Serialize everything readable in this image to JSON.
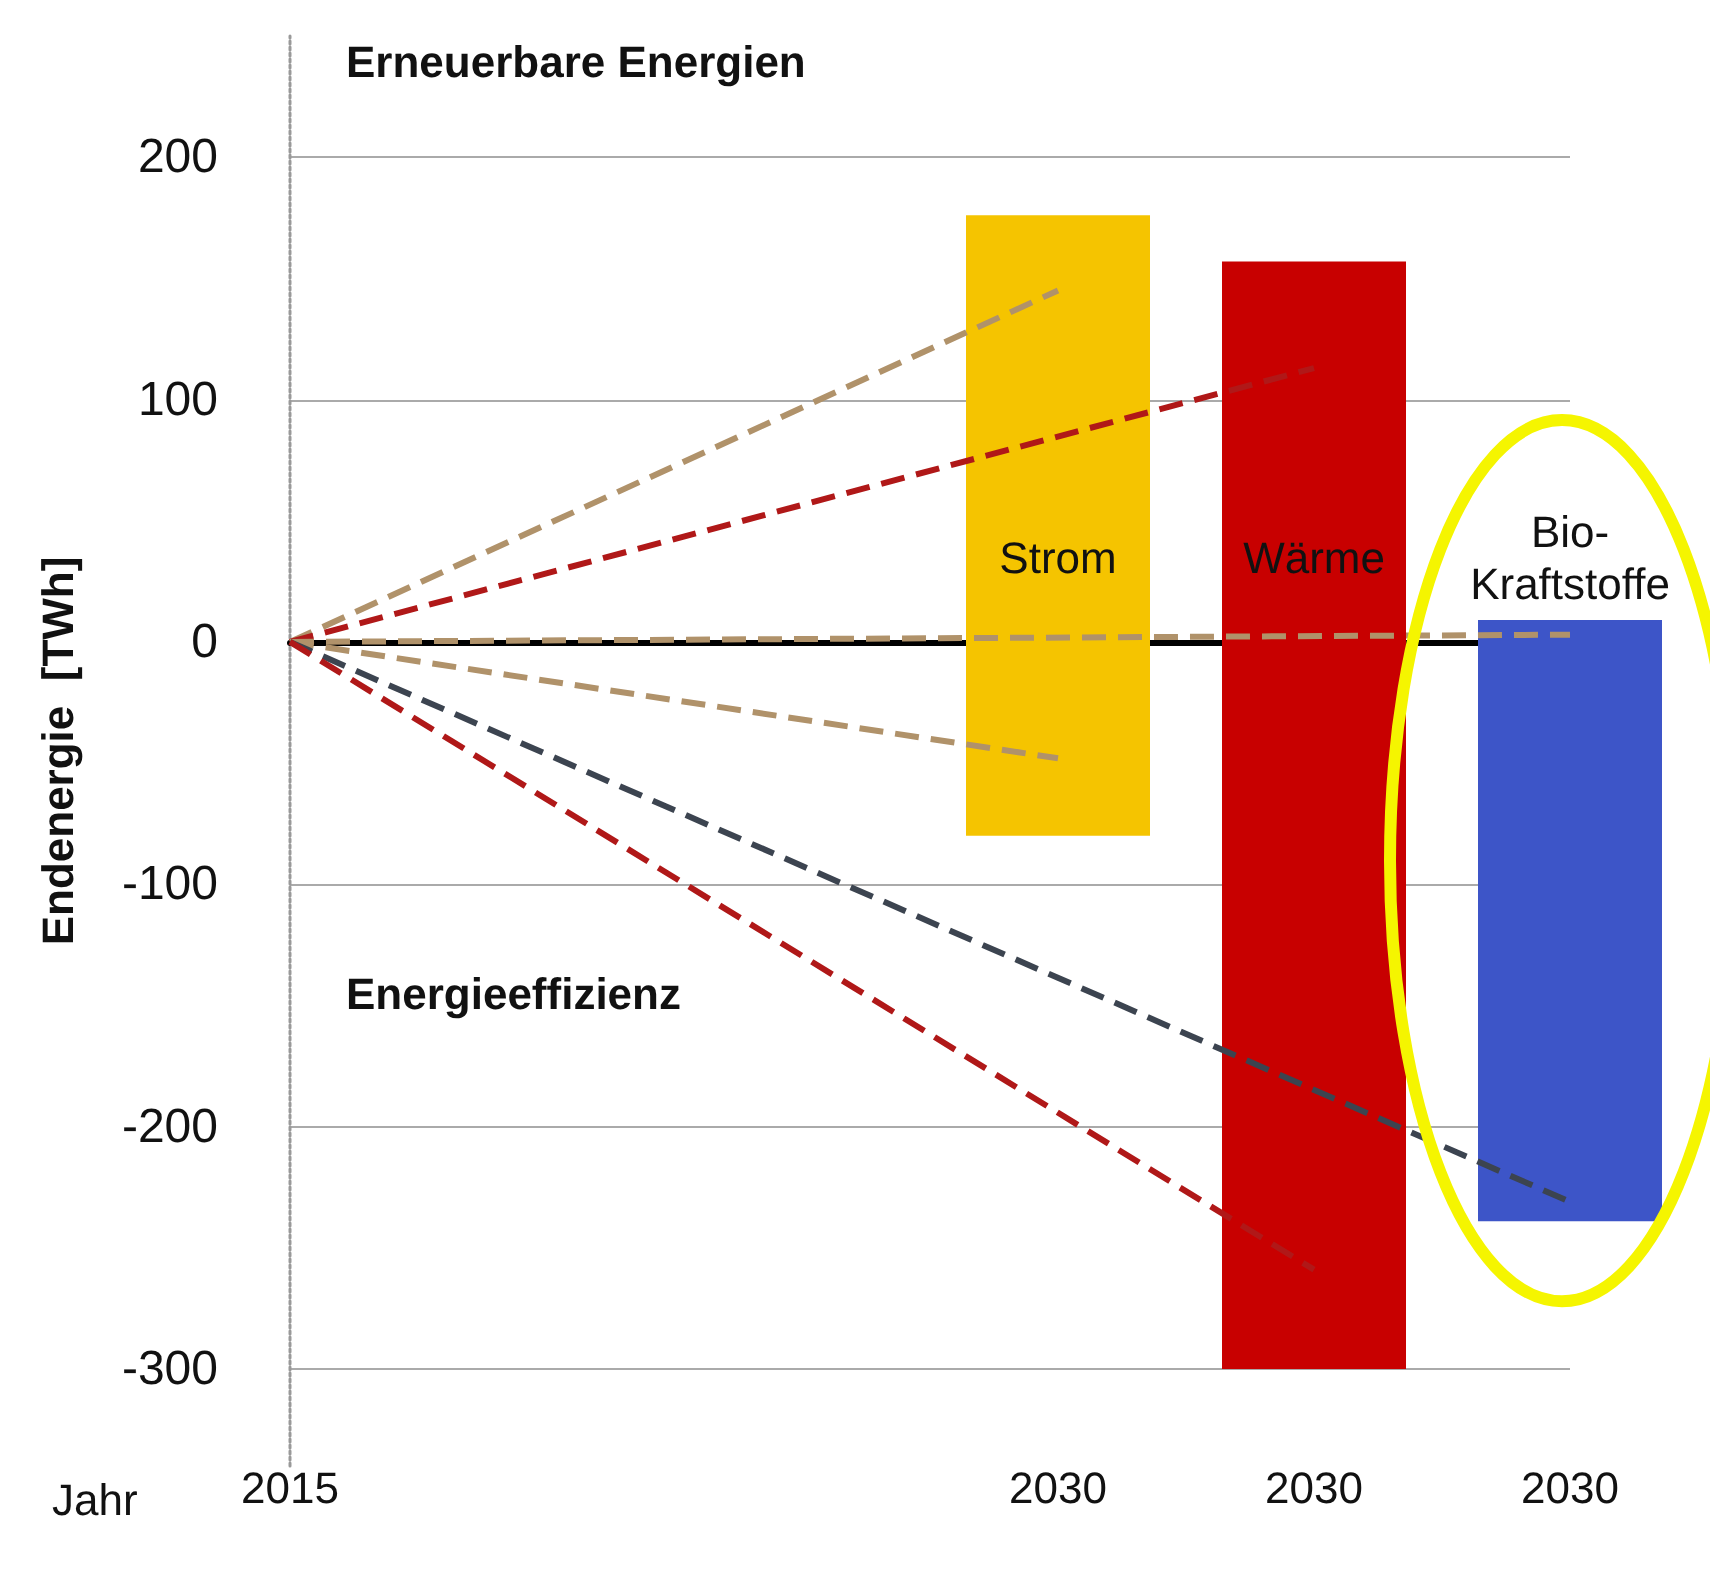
{
  "chart_data": {
    "type": "bar",
    "ylabel": "Endenergie  [TWh]",
    "xlabel": "Jahr",
    "categories": [
      "2015",
      null,
      null,
      "2030",
      "2030",
      "2030"
    ],
    "series": [
      {
        "name": "Strom",
        "color": "#f5c400",
        "values": [
          null,
          null,
          null,
          256,
          null,
          null
        ],
        "base": [
          null,
          null,
          null,
          -80,
          null,
          null
        ]
      },
      {
        "name": "Wärme",
        "color": "#c80000",
        "values": [
          null,
          null,
          null,
          null,
          457,
          null
        ],
        "base": [
          null,
          null,
          null,
          null,
          -300,
          null
        ]
      },
      {
        "name": "Bio-\nKraftstoffe",
        "color": "#3d55c8",
        "values": [
          null,
          null,
          null,
          null,
          null,
          248
        ],
        "base": [
          null,
          null,
          null,
          null,
          null,
          -239
        ]
      },
      {
        "type": "line",
        "color": "#b0926a",
        "values": [
          0,
          null,
          null,
          145,
          null,
          null
        ]
      },
      {
        "type": "line",
        "color": "#b01818",
        "values": [
          0,
          null,
          null,
          null,
          113,
          null
        ]
      },
      {
        "type": "line",
        "color": "#b0926a",
        "values": [
          0,
          null,
          null,
          -48,
          null,
          null
        ]
      },
      {
        "type": "line",
        "color": "#b0926a",
        "values": [
          0,
          null,
          null,
          null,
          null,
          3
        ]
      },
      {
        "type": "line",
        "color": "#3c4450",
        "values": [
          0,
          null,
          null,
          null,
          null,
          -231
        ]
      },
      {
        "type": "line",
        "color": "#b01818",
        "values": [
          0,
          null,
          null,
          null,
          -259,
          null
        ]
      }
    ],
    "line_style": "dashed",
    "marker": "none",
    "ylim": [
      -340,
      250
    ],
    "yticks": [
      -300,
      -200,
      -100,
      0,
      100,
      200
    ],
    "grid": "y",
    "legend": false,
    "annotations": [
      "Erneuerbare Energien",
      "Energieeffizienz"
    ]
  }
}
